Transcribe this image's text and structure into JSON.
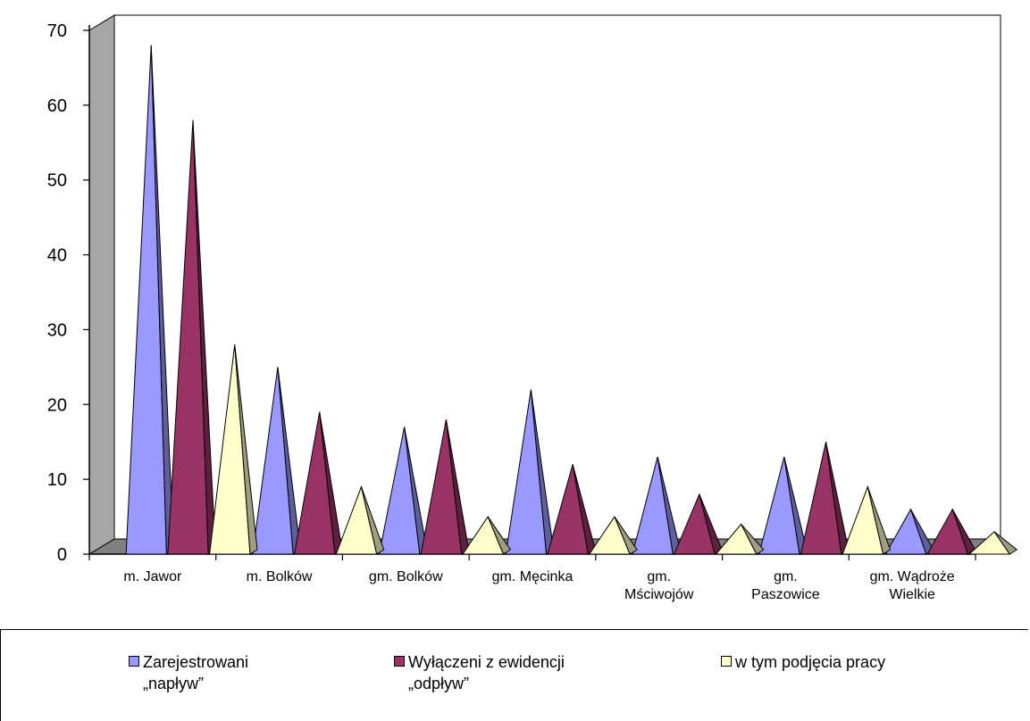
{
  "chart_data": {
    "type": "bar",
    "style": "3d-pyramid",
    "categories": [
      "m. Jawor",
      "m. Bolków",
      "gm. Bolków",
      "gm. Męcinka",
      "gm.\nMściwojów",
      "gm.\nPaszowice",
      "gm. Wądroże\nWielkie"
    ],
    "series": [
      {
        "name": "Zarejestrowani\n„napływ”",
        "color": "#9999FF",
        "values": [
          68,
          25,
          17,
          22,
          13,
          13,
          6
        ]
      },
      {
        "name": "Wyłączeni z ewidencji\n„odpływ”",
        "color": "#993366",
        "values": [
          58,
          19,
          18,
          12,
          8,
          15,
          6
        ]
      },
      {
        "name": "w tym  podjęcia pracy",
        "color": "#FFFFCC",
        "values": [
          28,
          9,
          5,
          5,
          4,
          9,
          3
        ]
      }
    ],
    "ylim": [
      0,
      70
    ],
    "yticks": [
      "0",
      "10",
      "20",
      "30",
      "40",
      "50",
      "60",
      "70"
    ],
    "grid": false,
    "legend_position": "bottom",
    "colors": {
      "wall": "#A6A6A6",
      "floor": "#808080",
      "axis": "#000000"
    }
  }
}
